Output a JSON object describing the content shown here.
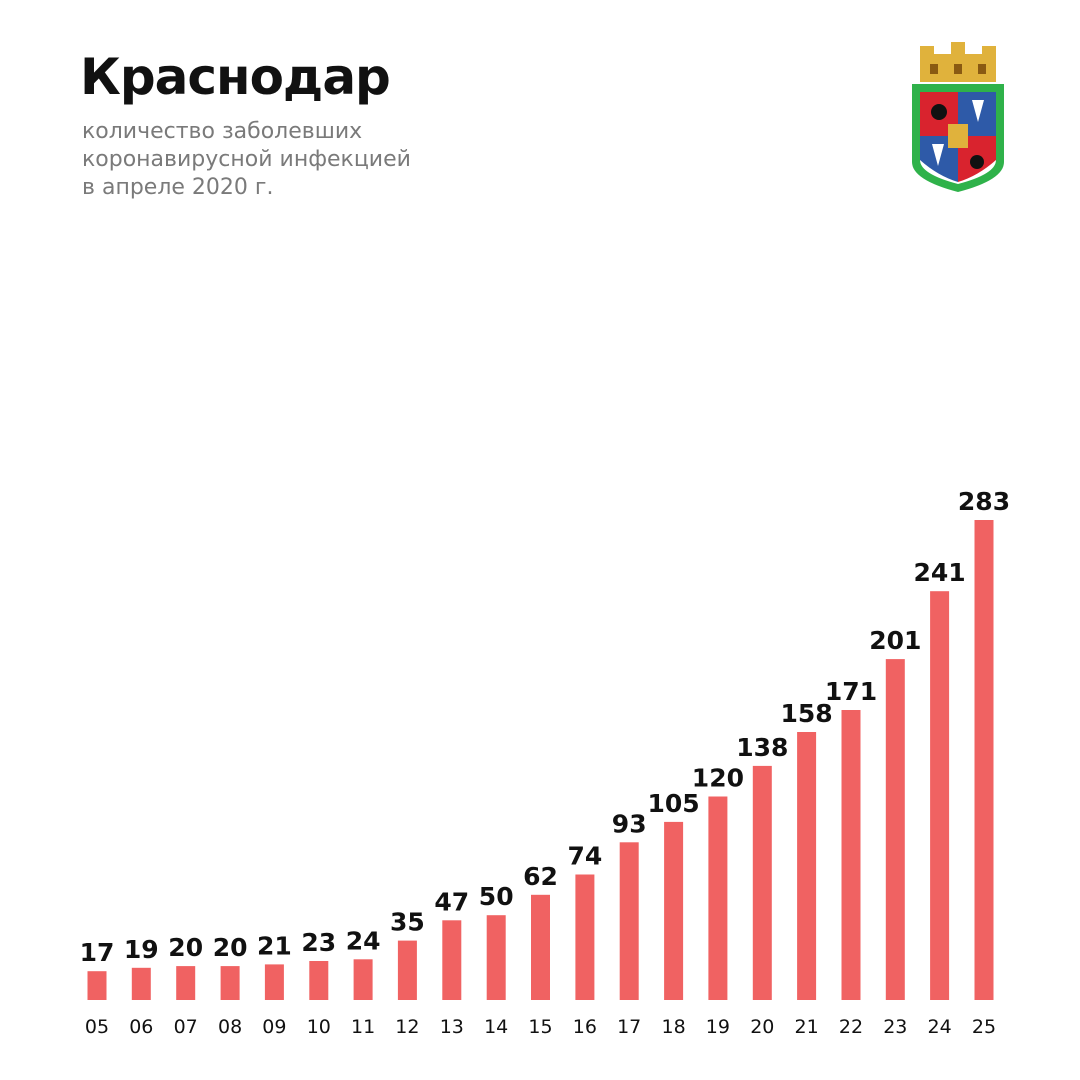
{
  "header": {
    "title": "Краснодар",
    "subtitle_lines": [
      "количество заболевших",
      "коронавирусной инфекцией",
      "в апреле 2020 г."
    ]
  },
  "emblem": {
    "icon": "krasnodar-coat-of-arms",
    "colors": {
      "border": "#2fb24a",
      "red": "#d9232e",
      "blue": "#2e5aa8",
      "gold": "#e0b23c"
    }
  },
  "colors": {
    "bar": "#f06262",
    "label": "#111111",
    "tick": "#111111"
  },
  "chart_data": {
    "type": "bar",
    "title": "Краснодар",
    "subtitle": "количество заболевших коронавирусной инфекцией в апреле 2020 г.",
    "xlabel": "",
    "ylabel": "",
    "categories": [
      "05",
      "06",
      "07",
      "08",
      "09",
      "10",
      "11",
      "12",
      "13",
      "14",
      "15",
      "16",
      "17",
      "18",
      "19",
      "20",
      "21",
      "22",
      "23",
      "24",
      "25"
    ],
    "values": [
      17,
      19,
      20,
      20,
      21,
      23,
      24,
      35,
      47,
      50,
      62,
      74,
      93,
      105,
      120,
      138,
      158,
      171,
      201,
      241,
      283
    ],
    "ylim": [
      0,
      283
    ],
    "grid": false,
    "legend": "none"
  }
}
